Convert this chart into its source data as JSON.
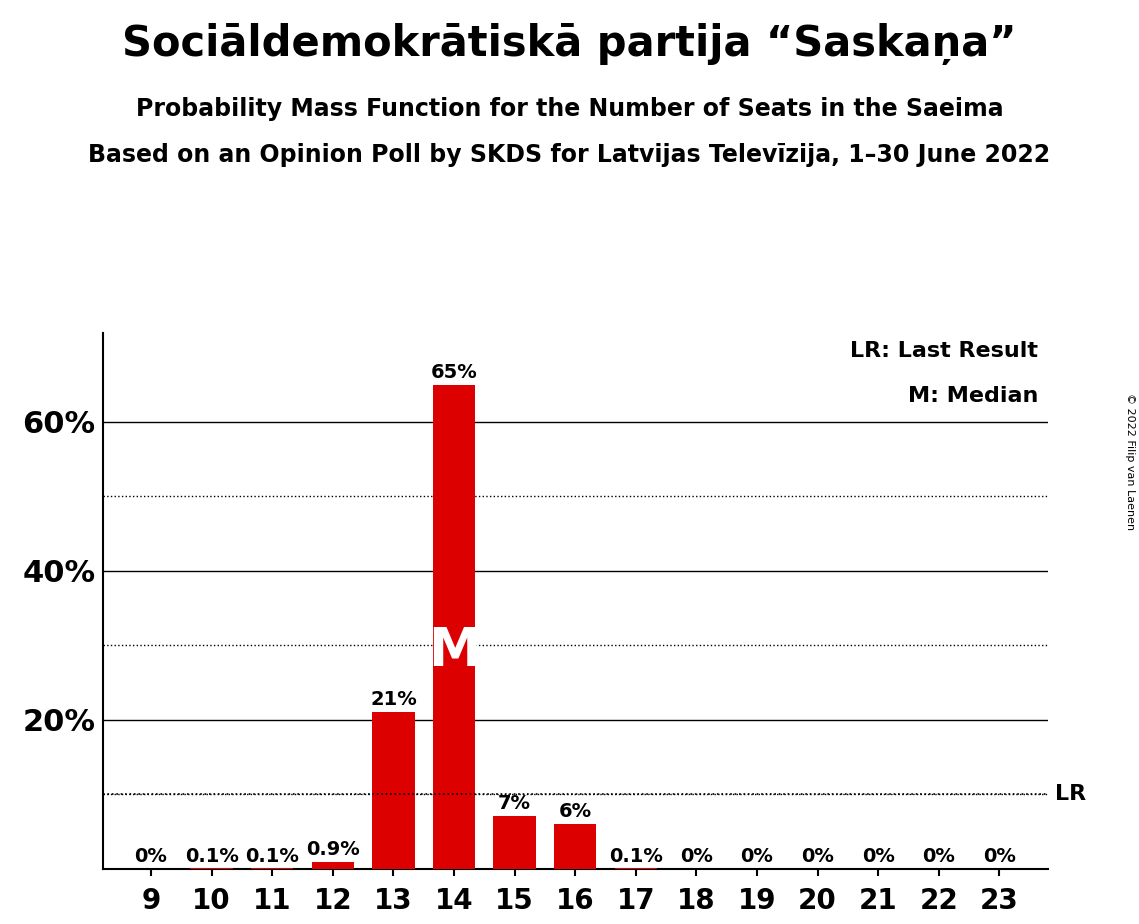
{
  "title": "Sociāldemokrātiskā partija “Saskaņa”",
  "subtitle": "Probability Mass Function for the Number of Seats in the Saeima",
  "subsubtitle": "Based on an Opinion Poll by SKDS for Latvijas Televīzija, 1–30 June 2022",
  "copyright": "© 2022 Filip van Laenen",
  "seats": [
    9,
    10,
    11,
    12,
    13,
    14,
    15,
    16,
    17,
    18,
    19,
    20,
    21,
    22,
    23
  ],
  "probabilities": [
    0.0,
    0.001,
    0.001,
    0.009,
    0.21,
    0.65,
    0.07,
    0.06,
    0.001,
    0.0,
    0.0,
    0.0,
    0.0,
    0.0,
    0.0
  ],
  "labels": [
    "0%",
    "0.1%",
    "0.1%",
    "0.9%",
    "21%",
    "65%",
    "7%",
    "6%",
    "0.1%",
    "0%",
    "0%",
    "0%",
    "0%",
    "0%",
    "0%"
  ],
  "bar_color": "#DD0000",
  "median_seat": 14,
  "lr_value": 0.1,
  "legend_lr": "LR: Last Result",
  "legend_m": "M: Median",
  "ylim": [
    0,
    0.72
  ],
  "solid_grid": [
    0.2,
    0.4,
    0.6
  ],
  "dotted_grid": [
    0.1,
    0.3,
    0.5
  ],
  "background_color": "#FFFFFF",
  "bar_width": 0.7,
  "title_fontsize": 30,
  "subtitle_fontsize": 17,
  "subsubtitle_fontsize": 17,
  "ytick_fontsize": 22,
  "xtick_fontsize": 20,
  "label_fontsize": 14,
  "m_fontsize": 38,
  "lr_fontsize": 16,
  "legend_fontsize": 16
}
